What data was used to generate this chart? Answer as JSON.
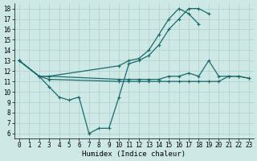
{
  "title": "",
  "xlabel": "Humidex (Indice chaleur)",
  "ylabel": "",
  "bg_color": "#cde8e5",
  "line_color": "#1a6b6b",
  "grid_color": "#aed0cc",
  "xlim": [
    -0.5,
    23.5
  ],
  "ylim": [
    5.5,
    18.5
  ],
  "xticks": [
    0,
    1,
    2,
    3,
    4,
    5,
    6,
    7,
    8,
    9,
    10,
    11,
    12,
    13,
    14,
    15,
    16,
    17,
    18,
    19,
    20,
    21,
    22,
    23
  ],
  "yticks": [
    6,
    7,
    8,
    9,
    10,
    11,
    12,
    13,
    14,
    15,
    16,
    17,
    18
  ],
  "lines": [
    {
      "x": [
        0,
        2,
        3,
        4,
        5,
        6,
        7,
        8,
        9,
        10,
        11,
        12,
        13,
        14,
        15,
        16,
        17,
        18,
        19
      ],
      "y": [
        13,
        11.5,
        10.5,
        9.5,
        9.2,
        9.5,
        6.0,
        6.5,
        6.5,
        9.5,
        12.7,
        13.0,
        13.5,
        14.5,
        16.0,
        17.0,
        18.0,
        18.0,
        17.5
      ]
    },
    {
      "x": [
        0,
        2,
        3,
        10,
        11,
        12,
        13,
        14,
        15,
        16,
        17,
        18
      ],
      "y": [
        13,
        11.5,
        11.5,
        12.5,
        13.0,
        13.2,
        14.0,
        15.5,
        17.0,
        18.0,
        17.5,
        16.5
      ]
    },
    {
      "x": [
        0,
        2,
        3,
        10,
        11,
        12,
        13,
        14,
        15,
        16,
        17,
        18,
        19,
        20,
        21,
        22,
        23
      ],
      "y": [
        13,
        11.5,
        11.5,
        11.2,
        11.2,
        11.2,
        11.2,
        11.2,
        11.5,
        11.5,
        11.8,
        11.5,
        13.0,
        11.5,
        11.5,
        11.5,
        11.3
      ]
    },
    {
      "x": [
        0,
        2,
        3,
        10,
        11,
        12,
        13,
        14,
        15,
        16,
        17,
        18,
        19,
        20,
        21,
        22,
        23
      ],
      "y": [
        13,
        11.5,
        11.2,
        11.0,
        11.0,
        11.0,
        11.0,
        11.0,
        11.0,
        11.0,
        11.0,
        11.0,
        11.0,
        11.0,
        11.5,
        11.5,
        11.3
      ]
    }
  ]
}
